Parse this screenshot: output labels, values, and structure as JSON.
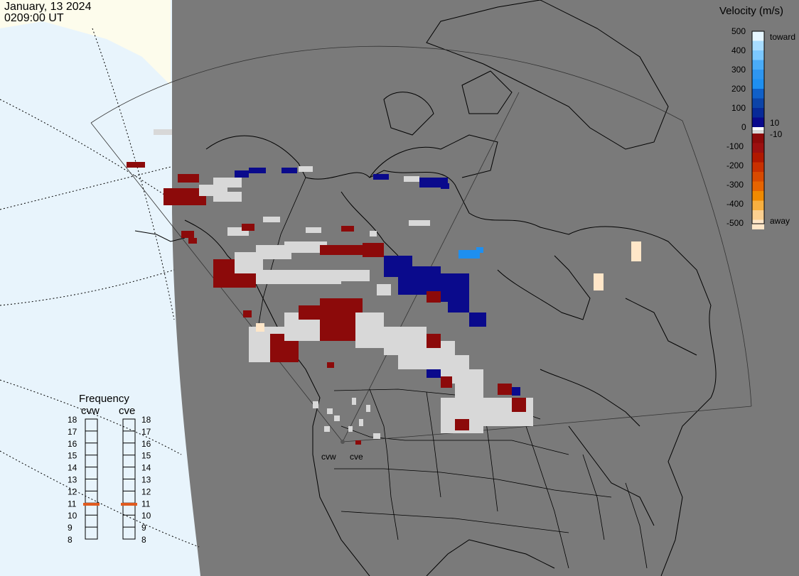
{
  "header": {
    "date": "January, 13 2024",
    "time": "0209:00 UT"
  },
  "colorbar": {
    "title": "Velocity (m/s)",
    "ticks": [
      "500",
      "400",
      "300",
      "200",
      "100",
      "10",
      "0",
      "-10",
      "-100",
      "-200",
      "-300",
      "-400",
      "-500"
    ],
    "label_toward": "toward",
    "label_away": "away",
    "colors": {
      "toward_high": "#e6f6ff",
      "toward_mid": "#1e8ff0",
      "toward_low": "#0a0a8c",
      "away_low": "#8c0a0a",
      "away_mid": "#e66400",
      "away_high": "#ffe6c8",
      "near_zero": "#d8d8d8"
    }
  },
  "frequency": {
    "title": "Frequency",
    "radars": [
      "cvw",
      "cve"
    ],
    "ticks": [
      "18",
      "17",
      "16",
      "15",
      "14",
      "13",
      "12",
      "11",
      "10",
      "9",
      "8"
    ],
    "current_mhz": [
      10.9,
      10.9
    ],
    "marker_color": "#e05a1e"
  },
  "map": {
    "ocean_color": "#e8f4fc",
    "night_color": "#7a7a7a",
    "day_land_color": "#fdfcec",
    "radar_labels": [
      "cvw",
      "cve"
    ]
  }
}
